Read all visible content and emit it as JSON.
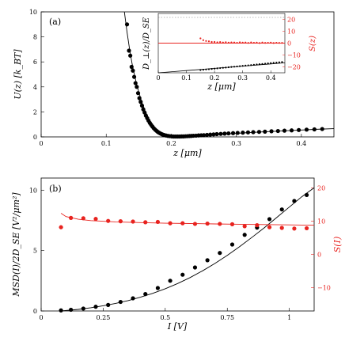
{
  "chart_data": [
    {
      "panel_label": "(a)",
      "type": "scatter",
      "xlabel": "z [μm]",
      "ylabel": "U(z) [k_BT]",
      "xlim": [
        0.0,
        0.45
      ],
      "ylim": [
        0,
        10
      ],
      "xticks": [
        "0",
        "0.1",
        "0.2",
        "0.3",
        "0.4"
      ],
      "yticks": [
        "0",
        "2",
        "4",
        "6",
        "8",
        "10"
      ],
      "series": [
        {
          "type": "scatter",
          "color": "#000000",
          "x": [
            0.132,
            0.135,
            0.137,
            0.139,
            0.141,
            0.143,
            0.145,
            0.147,
            0.149,
            0.151,
            0.153,
            0.155,
            0.157,
            0.159,
            0.161,
            0.163,
            0.165,
            0.167,
            0.169,
            0.171,
            0.173,
            0.175,
            0.177,
            0.179,
            0.181,
            0.183,
            0.185,
            0.187,
            0.189,
            0.192,
            0.195,
            0.198,
            0.201,
            0.204,
            0.207,
            0.21,
            0.213,
            0.216,
            0.219,
            0.222,
            0.225,
            0.228,
            0.231,
            0.234,
            0.238,
            0.242,
            0.246,
            0.25,
            0.255,
            0.26,
            0.265,
            0.27,
            0.276,
            0.282,
            0.288,
            0.295,
            0.302,
            0.31,
            0.318,
            0.326,
            0.335,
            0.344,
            0.354,
            0.364,
            0.374,
            0.385,
            0.396,
            0.408,
            0.42,
            0.432
          ],
          "y": [
            9.0,
            6.9,
            6.5,
            5.6,
            5.3,
            4.8,
            4.3,
            4.0,
            3.5,
            3.1,
            2.8,
            2.5,
            2.2,
            1.95,
            1.7,
            1.5,
            1.3,
            1.12,
            0.97,
            0.83,
            0.7,
            0.59,
            0.5,
            0.41,
            0.34,
            0.28,
            0.23,
            0.18,
            0.15,
            0.11,
            0.08,
            0.06,
            0.04,
            0.03,
            0.03,
            0.03,
            0.03,
            0.04,
            0.04,
            0.05,
            0.06,
            0.07,
            0.08,
            0.09,
            0.1,
            0.12,
            0.13,
            0.14,
            0.16,
            0.18,
            0.2,
            0.22,
            0.24,
            0.26,
            0.28,
            0.3,
            0.32,
            0.34,
            0.36,
            0.38,
            0.4,
            0.42,
            0.45,
            0.47,
            0.5,
            0.52,
            0.55,
            0.58,
            0.6,
            0.63
          ]
        },
        {
          "type": "line",
          "color": "#000000",
          "x": [
            0.128,
            0.132,
            0.136,
            0.14,
            0.145,
            0.15,
            0.155,
            0.16,
            0.165,
            0.17,
            0.175,
            0.18,
            0.185,
            0.19,
            0.195,
            0.2,
            0.21,
            0.22,
            0.23,
            0.24,
            0.26,
            0.28,
            0.3,
            0.32,
            0.34,
            0.36,
            0.38,
            0.4,
            0.42,
            0.45
          ],
          "y": [
            10.0,
            8.4,
            7.0,
            5.8,
            4.6,
            3.6,
            2.75,
            2.05,
            1.5,
            1.07,
            0.74,
            0.5,
            0.32,
            0.2,
            0.12,
            0.07,
            0.03,
            0.03,
            0.05,
            0.08,
            0.15,
            0.22,
            0.28,
            0.34,
            0.4,
            0.45,
            0.5,
            0.55,
            0.6,
            0.66
          ]
        }
      ],
      "inset": {
        "xlabel": "z [μm]",
        "ylabel_left": "D_⊥(z)/D_SE",
        "ylabel_right": "S(z)",
        "xlim": [
          0,
          0.45
        ],
        "xticks": [
          "0",
          "0.1",
          "0.2",
          "0.3",
          "0.4"
        ],
        "left_ylim": [
          0,
          1
        ],
        "right_ylim": [
          -25,
          25
        ],
        "right_yticks": [
          "20",
          "10",
          "0",
          "−10",
          "−20"
        ],
        "reference_line_left": 1.0,
        "diffusion_points": {
          "x": [
            0.15,
            0.16,
            0.17,
            0.18,
            0.19,
            0.2,
            0.21,
            0.22,
            0.23,
            0.24,
            0.25,
            0.26,
            0.27,
            0.28,
            0.29,
            0.3,
            0.31,
            0.32,
            0.33,
            0.34,
            0.35,
            0.36,
            0.37,
            0.38,
            0.39,
            0.4,
            0.41,
            0.42,
            0.43,
            0.44
          ],
          "y": [
            0.05,
            0.055,
            0.06,
            0.065,
            0.07,
            0.075,
            0.08,
            0.085,
            0.09,
            0.095,
            0.1,
            0.105,
            0.11,
            0.115,
            0.12,
            0.125,
            0.13,
            0.135,
            0.14,
            0.145,
            0.15,
            0.155,
            0.16,
            0.165,
            0.17,
            0.175,
            0.18,
            0.185,
            0.19,
            0.195
          ]
        },
        "diffusion_fit": {
          "x": [
            0.0,
            0.05,
            0.1,
            0.15,
            0.2,
            0.25,
            0.3,
            0.35,
            0.4,
            0.45
          ],
          "y": [
            0.0,
            0.02,
            0.04,
            0.06,
            0.08,
            0.1,
            0.12,
            0.14,
            0.16,
            0.18
          ]
        },
        "S_points": {
          "color": "#e8231f",
          "x": [
            0.15,
            0.16,
            0.17,
            0.18,
            0.19,
            0.2,
            0.21,
            0.22,
            0.23,
            0.24,
            0.25,
            0.26,
            0.27,
            0.28,
            0.29,
            0.3,
            0.31,
            0.32,
            0.33,
            0.34,
            0.35,
            0.36,
            0.37,
            0.38,
            0.39,
            0.4,
            0.41,
            0.42,
            0.43,
            0.44
          ],
          "y": [
            4.0,
            2.5,
            1.8,
            1.5,
            1.0,
            1.0,
            0.7,
            0.9,
            0.5,
            0.8,
            0.4,
            0.6,
            0.5,
            0.3,
            0.7,
            0.4,
            0.5,
            0.2,
            0.6,
            0.3,
            0.4,
            0.1,
            0.5,
            0.2,
            0.3,
            0.4,
            0.1,
            0.3,
            0.2,
            0.2
          ]
        },
        "S_fit": {
          "color": "#e8231f",
          "value": 0
        }
      }
    },
    {
      "panel_label": "(b)",
      "type": "scatter",
      "xlabel": "I [V]",
      "ylabel": "MSD(I)/2D_SE [V²/μm²]",
      "ylabel_right": "S(I)",
      "xlim": [
        0,
        1.1
      ],
      "ylim": [
        0,
        11
      ],
      "right_ylim": [
        -17,
        23
      ],
      "xticks": [
        "0",
        "0.25",
        "0.5",
        "0.75",
        "1"
      ],
      "yticks": [
        "0",
        "5",
        "10"
      ],
      "right_yticks": [
        "20",
        "10",
        "0",
        "−10"
      ],
      "series": [
        {
          "type": "scatter",
          "color": "#000000",
          "x": [
            0.08,
            0.12,
            0.17,
            0.22,
            0.27,
            0.32,
            0.37,
            0.42,
            0.47,
            0.52,
            0.57,
            0.62,
            0.67,
            0.72,
            0.77,
            0.82,
            0.87,
            0.92,
            0.97,
            1.02,
            1.07
          ],
          "y": [
            0.05,
            0.1,
            0.2,
            0.35,
            0.5,
            0.75,
            1.05,
            1.4,
            1.9,
            2.5,
            3.0,
            3.6,
            4.2,
            4.8,
            5.5,
            6.3,
            6.9,
            7.6,
            8.4,
            9.1,
            9.6
          ]
        },
        {
          "type": "line",
          "color": "#000000",
          "x": [
            0.08,
            0.15,
            0.2,
            0.25,
            0.3,
            0.35,
            0.4,
            0.45,
            0.5,
            0.55,
            0.6,
            0.65,
            0.7,
            0.75,
            0.8,
            0.85,
            0.9,
            0.95,
            1.0,
            1.05,
            1.1
          ],
          "y": [
            0.0,
            0.13,
            0.27,
            0.43,
            0.63,
            0.86,
            1.14,
            1.46,
            1.84,
            2.27,
            2.76,
            3.32,
            3.93,
            4.6,
            5.33,
            6.1,
            6.9,
            7.75,
            8.6,
            9.45,
            10.2
          ]
        },
        {
          "type": "scatter",
          "axis": "right",
          "color": "#e8231f",
          "x": [
            0.08,
            0.12,
            0.17,
            0.22,
            0.27,
            0.32,
            0.37,
            0.42,
            0.47,
            0.52,
            0.57,
            0.62,
            0.67,
            0.72,
            0.77,
            0.82,
            0.87,
            0.92,
            0.97,
            1.02,
            1.07
          ],
          "y": [
            8.2,
            11.0,
            10.9,
            10.7,
            10.1,
            10.0,
            9.9,
            9.7,
            9.8,
            9.4,
            9.4,
            9.2,
            9.3,
            9.2,
            9.1,
            8.5,
            8.8,
            8.2,
            8.0,
            7.8,
            7.9
          ]
        },
        {
          "type": "line",
          "axis": "right",
          "color": "#e8231f",
          "x": [
            0.08,
            0.1,
            0.15,
            0.2,
            0.3,
            0.4,
            0.5,
            0.6,
            0.7,
            0.8,
            0.9,
            1.0,
            1.1
          ],
          "y": [
            12.4,
            11.4,
            10.6,
            10.2,
            9.8,
            9.6,
            9.4,
            9.3,
            9.2,
            9.1,
            9.0,
            8.9,
            8.8
          ]
        }
      ]
    }
  ]
}
